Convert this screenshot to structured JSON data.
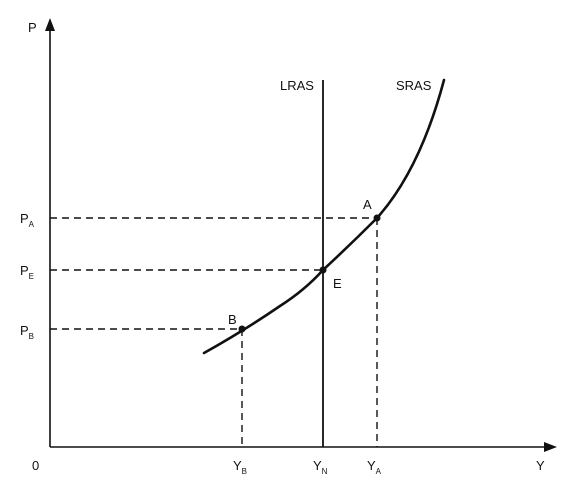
{
  "axes": {
    "y_label": "P",
    "x_label": "Y",
    "origin_label": "0"
  },
  "curves": {
    "lras": "LRAS",
    "sras": "SRAS"
  },
  "points": {
    "a": "A",
    "e": "E",
    "b": "B"
  },
  "price_labels": [
    {
      "main": "P",
      "sub": "A"
    },
    {
      "main": "P",
      "sub": "E"
    },
    {
      "main": "P",
      "sub": "B"
    }
  ],
  "output_labels": [
    {
      "main": "Y",
      "sub": "B"
    },
    {
      "main": "Y",
      "sub": "N"
    },
    {
      "main": "Y",
      "sub": "A"
    }
  ]
}
